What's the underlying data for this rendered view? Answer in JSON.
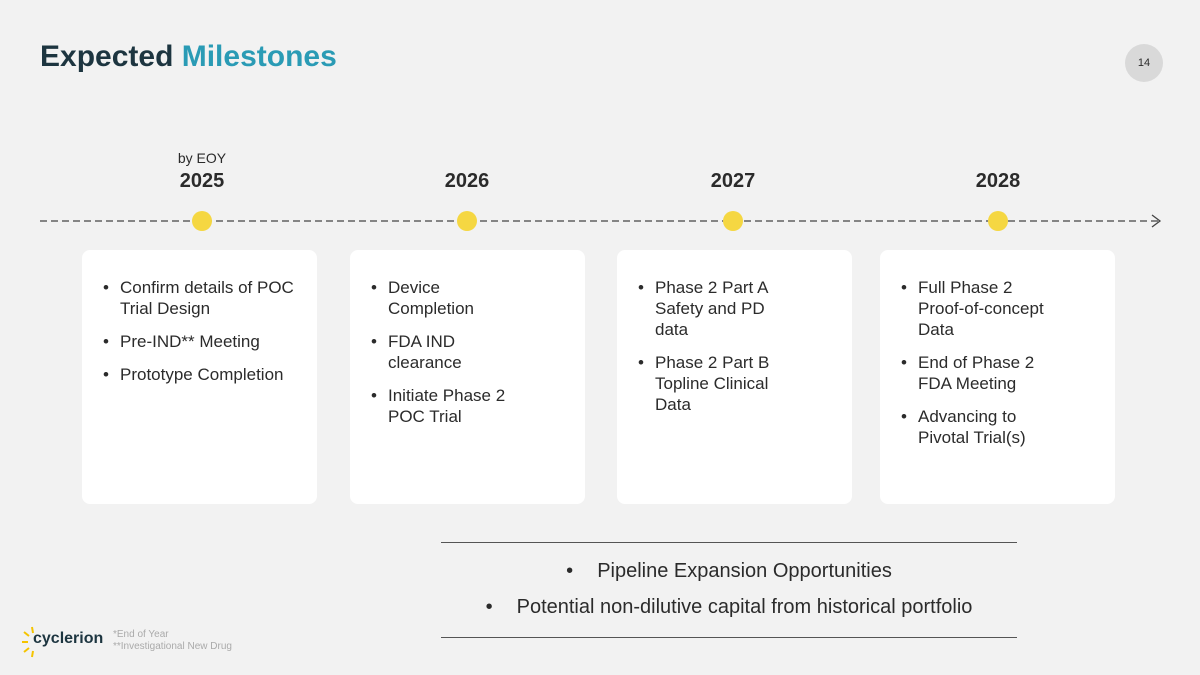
{
  "header": {
    "title_dark": "Expected",
    "title_accent": "Milestones",
    "page_number": "14"
  },
  "milestones": [
    {
      "note": "by EOY",
      "year": "2025",
      "items": [
        "Confirm details of POC Trial Design",
        "Pre-IND** Meeting",
        "Prototype Completion"
      ]
    },
    {
      "year": "2026",
      "items": [
        "Device Completion",
        "FDA IND clearance",
        "Initiate Phase 2 POC Trial"
      ]
    },
    {
      "year": "2027",
      "items": [
        "Phase 2 Part A Safety and PD data",
        "Phase 2 Part B Topline Clinical Data"
      ]
    },
    {
      "year": "2028",
      "items": [
        "Full Phase 2 Proof-of-concept Data",
        "End of Phase 2 FDA Meeting",
        "Advancing to Pivotal Trial(s)"
      ]
    }
  ],
  "bottom_bullets": [
    "Pipeline Expansion Opportunities",
    "Potential non-dilutive capital from historical portfolio"
  ],
  "footnotes": [
    "*End of Year",
    "**Investigational New Drug"
  ],
  "logo": "cyclerion"
}
